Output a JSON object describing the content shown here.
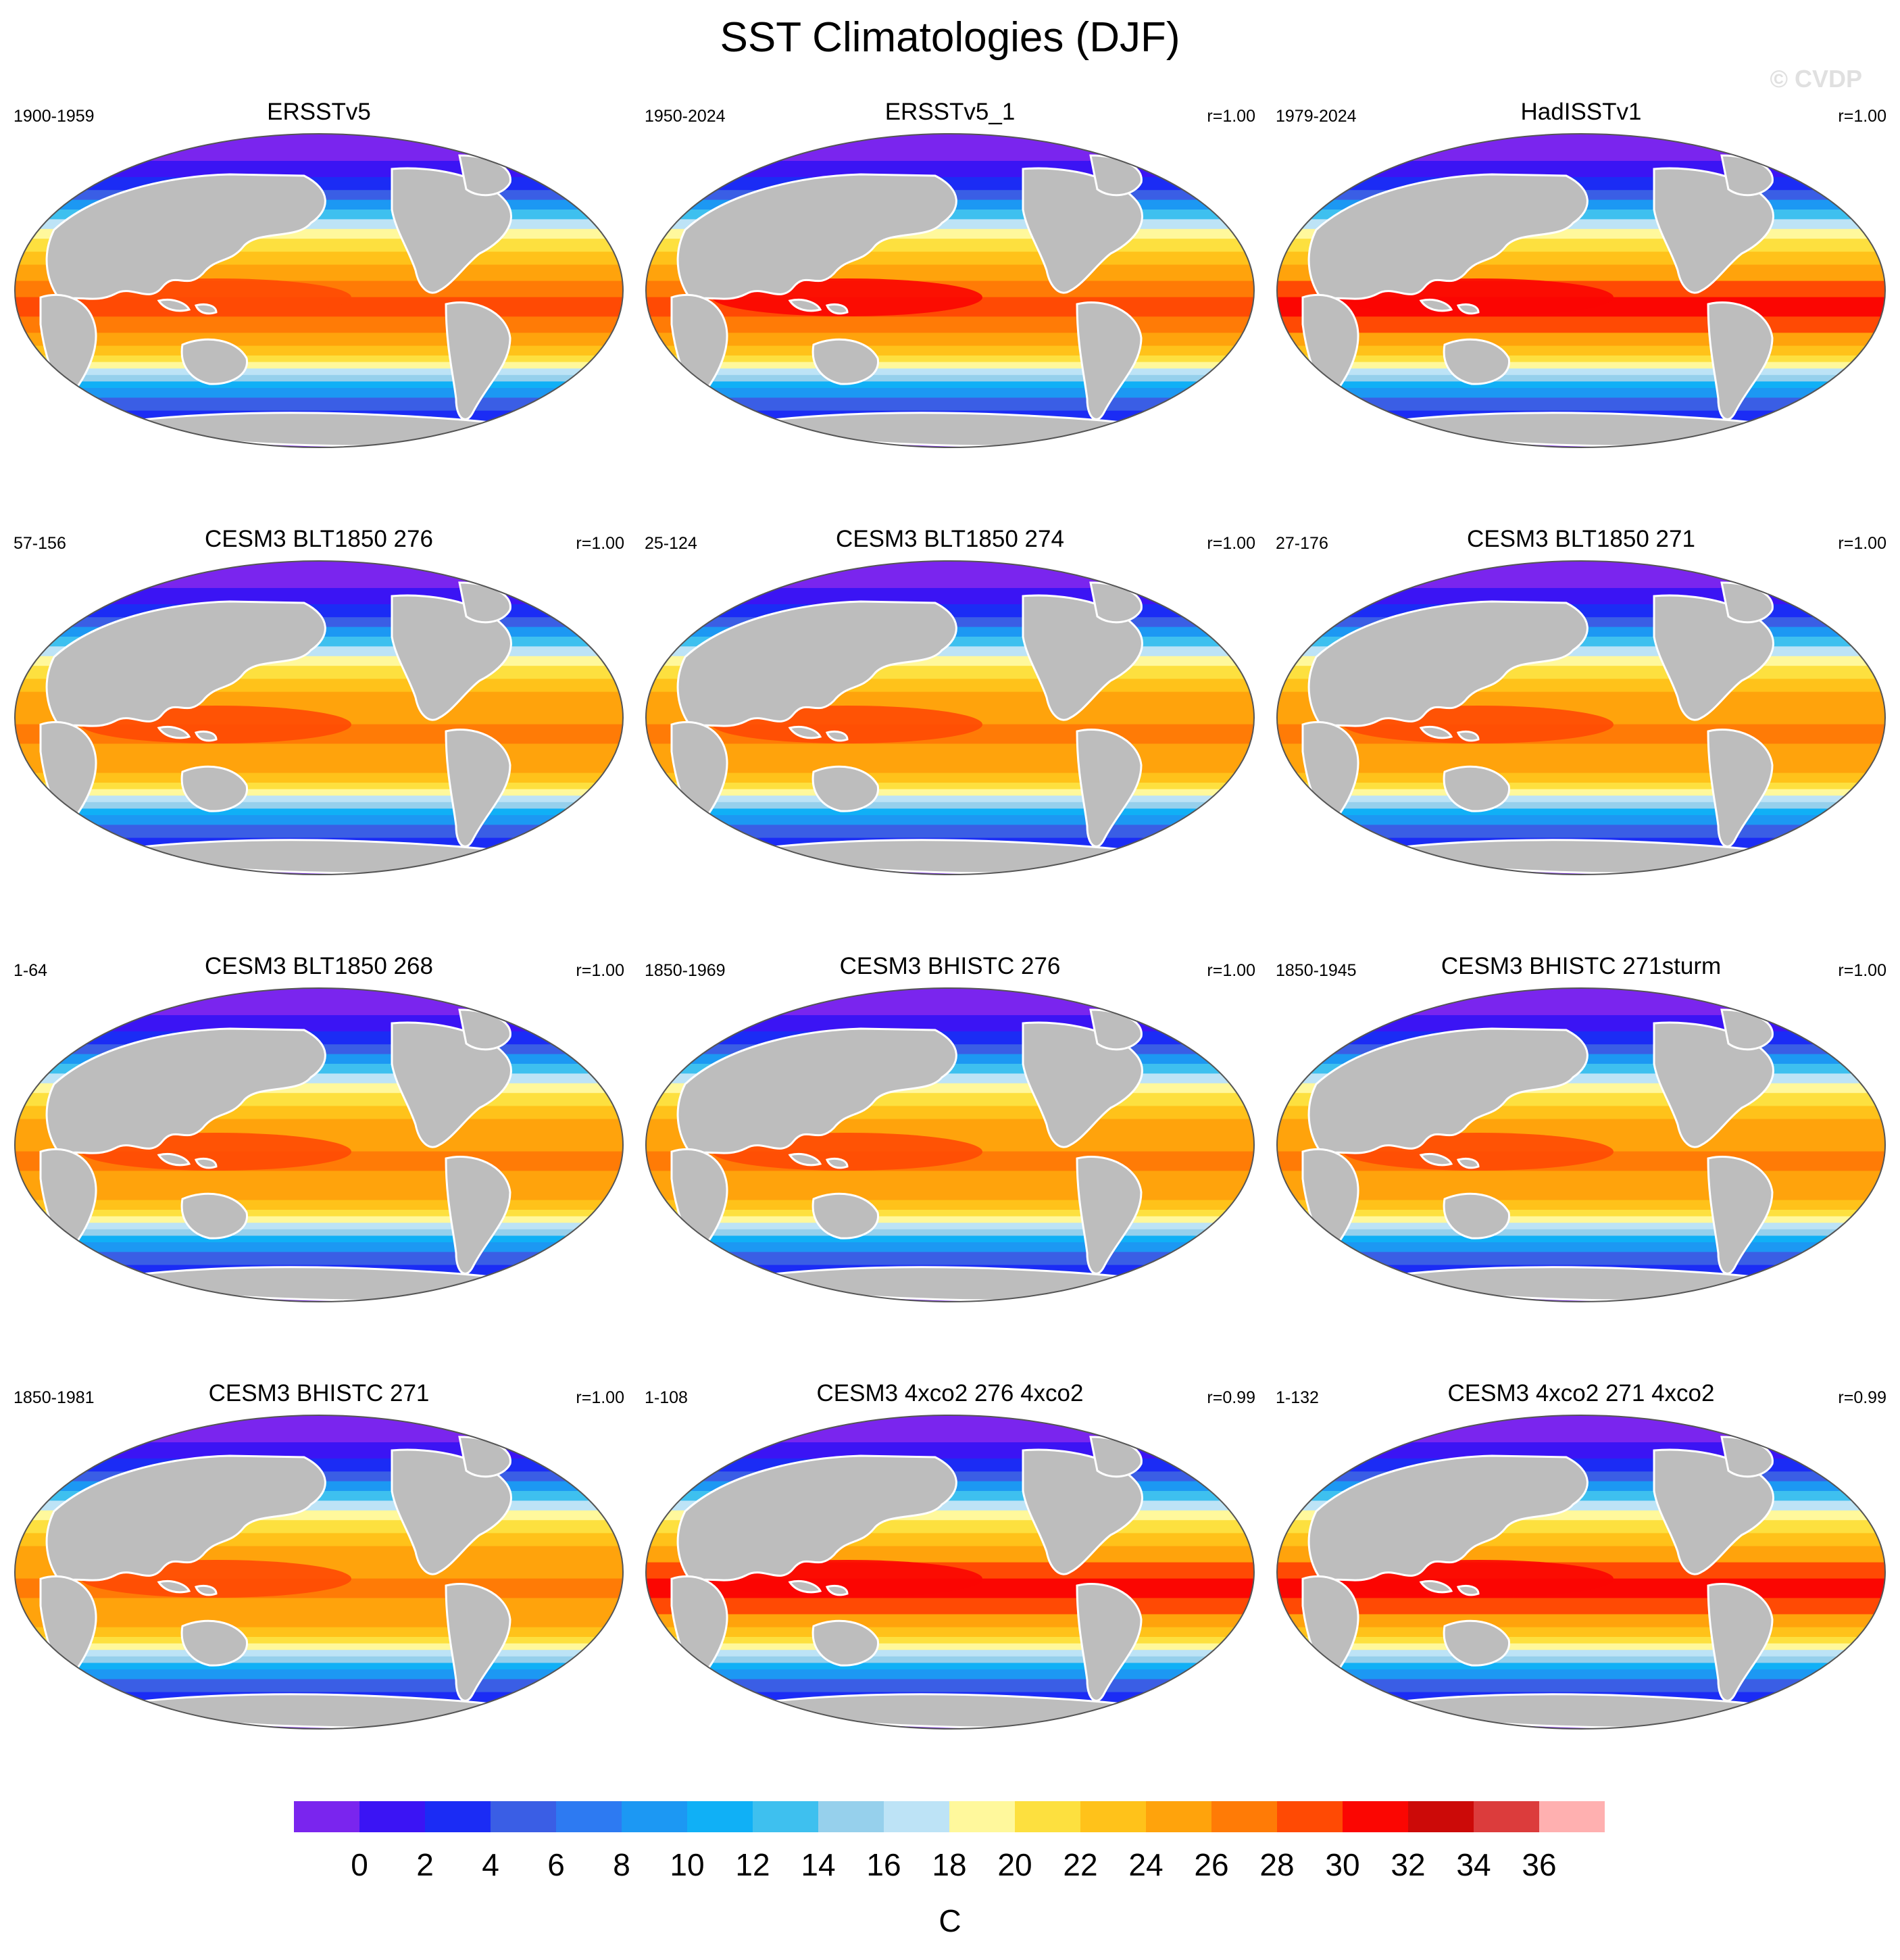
{
  "title": "SST Climatologies (DJF)",
  "watermark": "© CVDP",
  "colorbar": {
    "unit": "C",
    "ticks": [
      0,
      2,
      4,
      6,
      8,
      10,
      12,
      14,
      16,
      18,
      20,
      22,
      24,
      26,
      28,
      30,
      32,
      34,
      36
    ],
    "colors": [
      "#7a25ee",
      "#3b14f4",
      "#1b2cf5",
      "#3a5ee5",
      "#2d7af2",
      "#1c98f3",
      "#10b0f6",
      "#3ec0ef",
      "#96d0ec",
      "#bde3f6",
      "#fff89c",
      "#fde03f",
      "#ffc21a",
      "#ffa30c",
      "#ff7b06",
      "#ff4a04",
      "#fb0602",
      "#cc0a08",
      "#dc3c3c",
      "#ffb0b0"
    ]
  },
  "panels": [
    {
      "title": "ERSSTv5",
      "period": "1900-1959",
      "r": "",
      "warm": 0.6
    },
    {
      "title": "ERSSTv5_1",
      "period": "1950-2024",
      "r": "r=1.00",
      "warm": 0.8
    },
    {
      "title": "HadISSTv1",
      "period": "1979-2024",
      "r": "r=1.00",
      "warm": 0.9
    },
    {
      "title": "CESM3 BLT1850 276",
      "period": "57-156",
      "r": "r=1.00",
      "warm": 0.4
    },
    {
      "title": "CESM3 BLT1850 274",
      "period": "25-124",
      "r": "r=1.00",
      "warm": 0.4
    },
    {
      "title": "CESM3 BLT1850 271",
      "period": "27-176",
      "r": "r=1.00",
      "warm": 0.4
    },
    {
      "title": "CESM3 BLT1850 268",
      "period": "1-64",
      "r": "r=1.00",
      "warm": 0.45
    },
    {
      "title": "CESM3 BHISTC 276",
      "period": "1850-1969",
      "r": "r=1.00",
      "warm": 0.4
    },
    {
      "title": "CESM3 BHISTC 271sturm",
      "period": "1850-1945",
      "r": "r=1.00",
      "warm": 0.4
    },
    {
      "title": "CESM3 BHISTC 271",
      "period": "1850-1981",
      "r": "r=1.00",
      "warm": 0.35
    },
    {
      "title": "CESM3 4xco2 276 4xco2",
      "period": "1-108",
      "r": "r=0.99",
      "warm": 1.0
    },
    {
      "title": "CESM3 4xco2 271 4xco2",
      "period": "1-132",
      "r": "r=0.99",
      "warm": 1.0
    }
  ]
}
